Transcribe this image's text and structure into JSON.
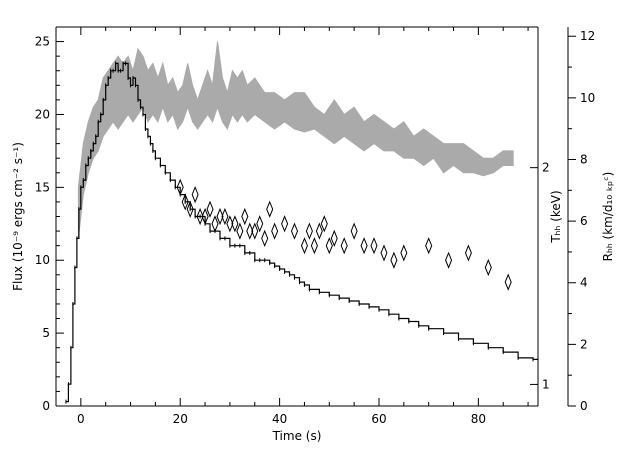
{
  "chart_data": {
    "type": "line",
    "xlabel": "Time (s)",
    "ylabel_left": "Flux (10⁻⁹ ergs cm⁻² s⁻¹)",
    "ylabel_right_inner": "Tₕₕ (keV)",
    "ylabel_right_outer": "Rₕₕ (km/d₁₀ ₖₚᶜ)",
    "xlim": [
      -5,
      92
    ],
    "ylim_flux": [
      0,
      26
    ],
    "ylim_R": [
      0,
      12.3
    ],
    "T_ticks": [
      1,
      2
    ],
    "T_tick_flux_positions": [
      1.48,
      16.35
    ],
    "x_ticks": [
      0,
      20,
      40,
      60,
      80
    ],
    "flux_ticks": [
      0,
      5,
      10,
      15,
      20,
      25
    ],
    "R_ticks": [
      0,
      2,
      4,
      6,
      8,
      10,
      12
    ],
    "grid": false,
    "legend": "none",
    "series": [
      {
        "kind": "flux_histogram",
        "color": "#000000",
        "x": [
          -3,
          -2.5,
          -2,
          -1.6,
          -1.2,
          -0.8,
          -0.4,
          0,
          0.5,
          1,
          1.5,
          2,
          2.5,
          3,
          3.5,
          4,
          4.5,
          5,
          5.5,
          6,
          6.5,
          7,
          7.5,
          8,
          8.5,
          9,
          9.5,
          10,
          10.5,
          11,
          11.5,
          12,
          12.5,
          13,
          13.5,
          14,
          14.5,
          15,
          16,
          17,
          18,
          19,
          20,
          21,
          22,
          23,
          24,
          25,
          26,
          27,
          28,
          29,
          30,
          31,
          32,
          33,
          34,
          35,
          36,
          37,
          38,
          39,
          40,
          41,
          42,
          43,
          44,
          45,
          46,
          48,
          50,
          52,
          54,
          56,
          58,
          60,
          62,
          64,
          66,
          68,
          70,
          73,
          76,
          79,
          82,
          85,
          88,
          91
        ],
        "y": [
          0.3,
          1.5,
          4.0,
          7.0,
          9.5,
          11.5,
          13.5,
          15.0,
          15.5,
          16.5,
          17.0,
          17.5,
          18.0,
          18.5,
          19.5,
          20.0,
          21.0,
          22.0,
          22.5,
          23.0,
          23.0,
          23.5,
          23.0,
          23.0,
          23.5,
          23.5,
          22.5,
          22.0,
          22.5,
          22.0,
          21.0,
          20.5,
          20.0,
          19.0,
          18.5,
          18.0,
          17.5,
          17.0,
          16.5,
          16.0,
          15.5,
          15.0,
          14.5,
          14.0,
          13.5,
          13.0,
          13.0,
          12.5,
          12.0,
          12.0,
          11.5,
          11.5,
          11.0,
          11.0,
          11.0,
          10.5,
          10.5,
          10.0,
          10.0,
          10.0,
          9.8,
          9.6,
          9.4,
          9.2,
          9.0,
          8.8,
          8.5,
          8.3,
          8.0,
          7.8,
          7.6,
          7.4,
          7.2,
          7.0,
          6.8,
          6.6,
          6.3,
          6.0,
          5.8,
          5.5,
          5.3,
          5.0,
          4.6,
          4.3,
          4.0,
          3.7,
          3.3,
          3.2
        ]
      },
      {
        "kind": "radius_band",
        "color": "#aaaaaa",
        "x": [
          -0.5,
          0.5,
          1.5,
          2.5,
          3.5,
          4.5,
          5.5,
          6.5,
          7.5,
          8.5,
          9.5,
          10.5,
          11.5,
          12.5,
          13.5,
          14.5,
          15.5,
          16.5,
          17.5,
          18.5,
          19.5,
          20.5,
          21.5,
          22.5,
          23.5,
          24.5,
          25.5,
          26.5,
          27.5,
          28.5,
          29.5,
          30.5,
          31.5,
          32.5,
          33.5,
          35,
          37,
          39,
          41,
          43,
          45,
          47,
          49,
          51,
          53,
          55,
          57,
          59,
          61,
          63,
          65,
          67,
          69,
          71,
          73,
          75,
          77,
          79,
          81,
          83,
          85,
          87
        ],
        "y_low": [
          11.5,
          14.5,
          16.0,
          17.0,
          17.5,
          18.5,
          19.0,
          19.5,
          19.0,
          19.5,
          20.0,
          19.5,
          20.0,
          20.5,
          19.5,
          20.0,
          19.5,
          20.5,
          19.5,
          20.0,
          19.0,
          19.5,
          20.5,
          19.5,
          19.0,
          19.5,
          20.0,
          19.5,
          20.5,
          19.5,
          19.0,
          20.0,
          19.5,
          20.0,
          19.5,
          20.0,
          19.5,
          19.0,
          19.5,
          19.0,
          18.8,
          19.0,
          18.5,
          18.0,
          18.5,
          18.0,
          17.5,
          18.0,
          17.5,
          17.5,
          17.0,
          17.0,
          16.5,
          17.0,
          16.0,
          16.5,
          16.0,
          16.0,
          15.8,
          16.0,
          16.5,
          16.5
        ],
        "y_high": [
          15.0,
          18.0,
          19.5,
          20.5,
          21.0,
          22.5,
          23.0,
          23.5,
          24.0,
          23.5,
          24.0,
          23.0,
          24.5,
          24.0,
          23.0,
          23.5,
          22.5,
          23.5,
          22.0,
          22.5,
          21.5,
          22.0,
          23.5,
          22.0,
          21.0,
          22.0,
          23.0,
          22.0,
          25.0,
          22.5,
          21.5,
          23.0,
          22.5,
          23.0,
          22.0,
          22.5,
          21.5,
          21.5,
          21.0,
          21.5,
          21.5,
          20.5,
          20.0,
          21.0,
          20.0,
          20.5,
          19.5,
          20.0,
          19.5,
          19.0,
          19.5,
          18.5,
          19.0,
          18.5,
          18.0,
          18.0,
          18.0,
          17.5,
          17.0,
          17.0,
          17.5,
          17.5
        ]
      },
      {
        "kind": "temperature_diamonds",
        "color": "#000000",
        "x": [
          20,
          21,
          22,
          23,
          24,
          25,
          26,
          27,
          28,
          29,
          30,
          31,
          32,
          33,
          34,
          35,
          36,
          37,
          38,
          39,
          41,
          43,
          45,
          46,
          47,
          48,
          49,
          50,
          51,
          53,
          55,
          57,
          59,
          61,
          63,
          65,
          70,
          74,
          78,
          82,
          86
        ],
        "y": [
          15.0,
          14.0,
          13.5,
          14.5,
          13.0,
          13.0,
          13.5,
          12.5,
          13.0,
          13.0,
          12.5,
          12.5,
          12.0,
          13.0,
          12.0,
          12.0,
          12.5,
          11.5,
          13.5,
          12.0,
          12.5,
          12.0,
          11.0,
          12.0,
          11.0,
          12.0,
          12.5,
          11.0,
          11.5,
          11.0,
          12.0,
          11.0,
          11.0,
          10.5,
          10.0,
          10.5,
          11.0,
          10.0,
          10.5,
          9.5,
          8.5
        ],
        "width": 1.2,
        "height": 1.0
      }
    ]
  }
}
